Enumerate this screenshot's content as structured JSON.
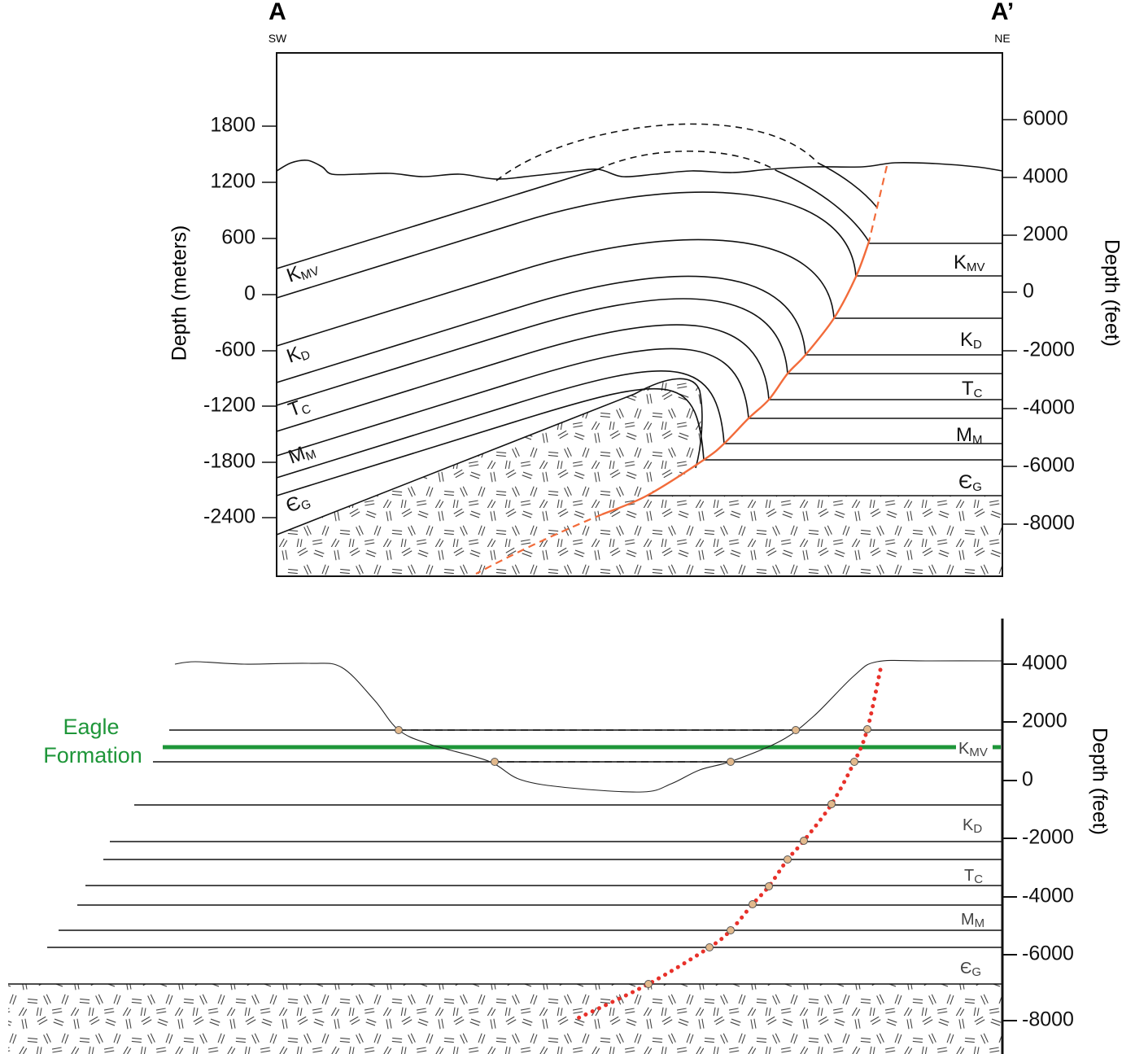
{
  "top_section": {
    "left_end": {
      "label": "A",
      "direction": "SW"
    },
    "right_end": {
      "label": "A’",
      "direction": "NE"
    },
    "left_axis": {
      "title": "Depth (meters)",
      "ticks": [
        1800,
        1200,
        600,
        0,
        -600,
        -1200,
        -1800,
        -2400
      ]
    },
    "right_axis": {
      "title": "Depth (feet)",
      "ticks": [
        6000,
        4000,
        2000,
        0,
        -2000,
        -4000,
        -6000,
        -8000
      ]
    },
    "left_units": [
      {
        "main": "K",
        "sub": "MV"
      },
      {
        "main": "K",
        "sub": "D"
      },
      {
        "main": "T",
        "sub": "C"
      },
      {
        "main": "M",
        "sub": "M"
      },
      {
        "main": "Є",
        "sub": "G"
      }
    ],
    "right_units": [
      {
        "main": "K",
        "sub": "MV"
      },
      {
        "main": "K",
        "sub": "D"
      },
      {
        "main": "T",
        "sub": "C"
      },
      {
        "main": "M",
        "sub": "M"
      },
      {
        "main": "Є",
        "sub": "G"
      }
    ]
  },
  "bottom_section": {
    "callout": [
      "Eagle",
      "Formation"
    ],
    "right_axis": {
      "title": "Depth (feet)",
      "ticks": [
        4000,
        2000,
        0,
        -2000,
        -4000,
        -6000,
        -8000
      ]
    },
    "units": [
      {
        "main": "K",
        "sub": "MV"
      },
      {
        "main": "K",
        "sub": "D"
      },
      {
        "main": "T",
        "sub": "C"
      },
      {
        "main": "M",
        "sub": "M"
      },
      {
        "main": "Є",
        "sub": "G"
      }
    ]
  }
}
